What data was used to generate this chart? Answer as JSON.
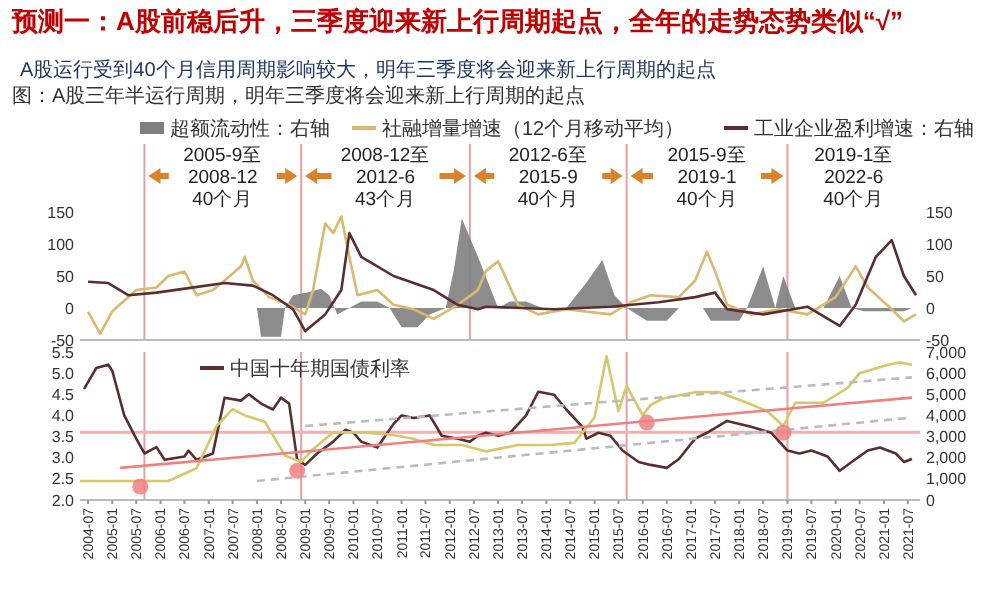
{
  "chart_data": [
    {
      "type": "line",
      "title": "预测一：A股前稳后升，三季度迎来新上行周期起点，全年的走势态势类似“√”",
      "subtitle": "A股运行受到40个月信用周期影响较大，明年三季度将会迎来新上行周期的起点",
      "xlim": [
        "2004-05",
        "2021-10"
      ],
      "ylim": [
        -50,
        150
      ],
      "yticks": [
        -50,
        0,
        50,
        100,
        150
      ],
      "y2lim": [
        -50,
        150
      ],
      "y2ticks": [
        -50,
        0,
        50,
        100,
        150
      ],
      "tick_labels": "y",
      "legend": "top",
      "series": [
        {
          "name": "超额流动性：右轴",
          "type": "area",
          "axis": "y2",
          "color": "#7f7f7f",
          "x": [
            "2008-01",
            "2008-02",
            "2008-07",
            "2008-08",
            "2008-10",
            "2009-02",
            "2009-05",
            "2009-07",
            "2009-09",
            "2009-12",
            "2010-03",
            "2010-07",
            "2010-10",
            "2011-01",
            "2011-05",
            "2011-08",
            "2011-12",
            "2012-02",
            "2012-04",
            "2012-08",
            "2013-01",
            "2013-04",
            "2013-08",
            "2013-12",
            "2014-06",
            "2014-11",
            "2015-03",
            "2015-06",
            "2015-09",
            "2016-02",
            "2016-07",
            "2016-10",
            "2017-04",
            "2017-06",
            "2018-01",
            "2018-03",
            "2018-07",
            "2018-10",
            "2018-12",
            "2019-03",
            "2019-10",
            "2020-02",
            "2020-05",
            "2020-08",
            "2021-06",
            "2021-08"
          ],
          "values": [
            0,
            -45,
            -45,
            0,
            20,
            25,
            30,
            20,
            -10,
            0,
            10,
            10,
            0,
            -30,
            -30,
            -10,
            0,
            60,
            140,
            80,
            0,
            10,
            10,
            0,
            0,
            40,
            75,
            20,
            0,
            -20,
            -20,
            0,
            0,
            -20,
            -20,
            0,
            65,
            0,
            50,
            0,
            0,
            50,
            0,
            -5,
            -5,
            0
          ]
        },
        {
          "name": "社融增量增速（12个月移动平均）",
          "color": "#d9b870",
          "x": [
            "2004-07",
            "2004-10",
            "2005-01",
            "2005-07",
            "2005-12",
            "2006-03",
            "2006-07",
            "2006-10",
            "2007-02",
            "2007-05",
            "2007-09",
            "2007-10",
            "2007-12",
            "2008-04",
            "2008-09",
            "2009-01",
            "2009-03",
            "2009-06",
            "2009-08",
            "2009-10",
            "2009-12",
            "2010-02",
            "2010-07",
            "2010-11",
            "2011-04",
            "2011-09",
            "2012-03",
            "2012-08",
            "2012-10",
            "2013-01",
            "2013-06",
            "2013-11",
            "2014-06",
            "2015-05",
            "2015-10",
            "2016-03",
            "2016-10",
            "2017-02",
            "2017-05",
            "2017-07",
            "2017-10",
            "2018-04",
            "2018-11",
            "2019-06",
            "2020-01",
            "2020-06",
            "2020-09",
            "2021-03",
            "2021-06",
            "2021-09"
          ],
          "values": [
            -6,
            -40,
            -5,
            28,
            32,
            50,
            57,
            20,
            28,
            43,
            65,
            80,
            43,
            17,
            5,
            -10,
            28,
            132,
            117,
            143,
            80,
            20,
            28,
            5,
            -2,
            -17,
            5,
            28,
            58,
            73,
            5,
            -10,
            -2,
            -10,
            9,
            20,
            17,
            43,
            88,
            58,
            5,
            -10,
            -2,
            -10,
            17,
            65,
            32,
            -2,
            -21,
            -10
          ]
        },
        {
          "name": "工业企业盈利增速：右轴",
          "axis": "y2",
          "color": "#5a2e2e",
          "x": [
            "2004-07",
            "2004-12",
            "2005-05",
            "2005-12",
            "2006-08",
            "2007-05",
            "2007-12",
            "2008-05",
            "2008-10",
            "2009-01",
            "2009-06",
            "2009-10",
            "2009-12",
            "2010-03",
            "2010-11",
            "2011-09",
            "2012-03",
            "2012-08",
            "2012-10",
            "2014-03",
            "2015-05",
            "2016-05",
            "2017-02",
            "2017-07",
            "2017-10",
            "2018-07",
            "2019-06",
            "2020-02",
            "2020-06",
            "2020-11",
            "2021-03",
            "2021-06",
            "2021-09"
          ],
          "values": [
            41,
            39,
            20,
            24,
            31,
            39,
            35,
            20,
            -2,
            -36,
            -10,
            28,
            117,
            80,
            50,
            28,
            5,
            -2,
            2,
            -2,
            2,
            9,
            17,
            24,
            -2,
            -10,
            2,
            -28,
            5,
            80,
            106,
            50,
            20
          ]
        }
      ],
      "ref_lines": [
        {
          "axis": "x",
          "value": "2005-09",
          "color": "#e8a0a0"
        },
        {
          "axis": "x",
          "value": "2008-12",
          "color": "#e8a0a0"
        },
        {
          "axis": "x",
          "value": "2012-06",
          "color": "#e8a0a0"
        },
        {
          "axis": "x",
          "value": "2015-09",
          "color": "#e8a0a0"
        },
        {
          "axis": "x",
          "value": "2019-01",
          "color": "#e8a0a0"
        }
      ],
      "annotations": [
        "图：A股三年半运行周期，明年三季度将会迎来新上行周期的起点",
        "2005-9至\n2008-12\n40个月",
        "2008-12至\n2012-6\n43个月",
        "2012-6至\n2015-9\n40个月",
        "2015-9至\n2019-1\n40个月",
        "2019-1至\n2022-6\n40个月"
      ]
    },
    {
      "type": "line",
      "xlim": [
        "2004-05",
        "2021-10"
      ],
      "xticks": [
        "2004-07",
        "2005-01",
        "2005-07",
        "2006-01",
        "2006-07",
        "2007-01",
        "2007-07",
        "2008-01",
        "2008-07",
        "2009-01",
        "2009-07",
        "2010-01",
        "2010-07",
        "2011-01",
        "2011-07",
        "2012-01",
        "2012-07",
        "2013-01",
        "2013-07",
        "2014-01",
        "2014-07",
        "2015-01",
        "2015-07",
        "2016-01",
        "2016-07",
        "2017-01",
        "2017-07",
        "2018-01",
        "2018-07",
        "2019-01",
        "2019-07",
        "2020-01",
        "2020-07",
        "2021-01",
        "2021-07"
      ],
      "ylim": [
        2,
        5.5
      ],
      "yticks": [
        {
          "value": 2,
          "label": "2.0"
        },
        2.5,
        {
          "value": 3,
          "label": "3.0"
        },
        3.5,
        {
          "value": 4,
          "label": "4.0"
        },
        4.5,
        {
          "value": 5,
          "label": "5.0"
        },
        5.5
      ],
      "y2lim": [
        0,
        7000
      ],
      "y2ticks": [
        0,
        {
          "value": 1000,
          "label": "1,000"
        },
        {
          "value": 2000,
          "label": "2,000"
        },
        {
          "value": 3000,
          "label": "3,000"
        },
        {
          "value": 4000,
          "label": "4,000"
        },
        {
          "value": 5000,
          "label": "5,000"
        },
        {
          "value": 6000,
          "label": "6,000"
        },
        {
          "value": 7000,
          "label": "7,000"
        }
      ],
      "legend": "top left",
      "series": [
        {
          "name": "中国十年期国债利率",
          "color": "#5a2e2e",
          "x": [
            "2004-06",
            "2004-09",
            "2004-12",
            "2005-01",
            "2005-04",
            "2005-07",
            "2005-09",
            "2005-12",
            "2006-02",
            "2006-07",
            "2006-08",
            "2006-10",
            "2007-02",
            "2007-05",
            "2007-09",
            "2007-11",
            "2008-02",
            "2008-05",
            "2008-07",
            "2008-09",
            "2008-11",
            "2009-01",
            "2009-04",
            "2009-08",
            "2009-11",
            "2010-01",
            "2010-03",
            "2010-07",
            "2010-11",
            "2011-01",
            "2011-04",
            "2011-08",
            "2011-11",
            "2012-03",
            "2012-06",
            "2012-08",
            "2012-10",
            "2013-01",
            "2013-04",
            "2013-08",
            "2013-11",
            "2014-03",
            "2014-06",
            "2014-10",
            "2014-11",
            "2015-02",
            "2015-05",
            "2015-08",
            "2015-12",
            "2016-03",
            "2016-07",
            "2016-10",
            "2017-02",
            "2017-05",
            "2017-10",
            "2018-04",
            "2018-09",
            "2019-01",
            "2019-04",
            "2019-07",
            "2019-11",
            "2020-02",
            "2020-05",
            "2020-09",
            "2020-12",
            "2021-04",
            "2021-06",
            "2021-08"
          ],
          "values": [
            4.63,
            5.12,
            5.2,
            5.05,
            4.0,
            3.45,
            3.1,
            3.25,
            2.95,
            3.03,
            3.17,
            2.95,
            3.1,
            4.42,
            4.35,
            4.5,
            4.28,
            4.14,
            4.42,
            4.28,
            2.95,
            2.83,
            3.1,
            3.38,
            3.66,
            3.59,
            3.38,
            3.24,
            3.8,
            4.0,
            3.94,
            4.0,
            3.52,
            3.45,
            3.38,
            3.52,
            3.59,
            3.52,
            3.59,
            4.0,
            4.56,
            4.49,
            4.14,
            3.73,
            3.45,
            3.59,
            3.52,
            3.17,
            2.9,
            2.83,
            2.76,
            2.97,
            3.45,
            3.59,
            3.87,
            3.73,
            3.59,
            3.17,
            3.1,
            3.17,
            3.03,
            2.69,
            2.9,
            3.17,
            3.24,
            3.1,
            2.9,
            2.97
          ]
        },
        {
          "axis": "y2",
          "color": "#d6c76a",
          "x": [
            "2004-05",
            "2006-03",
            "2006-10",
            "2007-03",
            "2007-07",
            "2007-10",
            "2008-03",
            "2008-08",
            "2008-12",
            "2009-03",
            "2009-08",
            "2010-03",
            "2010-10",
            "2011-04",
            "2011-09",
            "2012-04",
            "2012-08",
            "2012-10",
            "2013-06",
            "2014-02",
            "2014-08",
            "2015-01",
            "2015-04",
            "2015-07",
            "2015-09",
            "2016-01",
            "2016-03",
            "2016-06",
            "2017-02",
            "2017-08",
            "2018-03",
            "2018-08",
            "2018-12",
            "2019-03",
            "2019-10",
            "2020-04",
            "2020-07",
            "2021-02",
            "2021-05",
            "2021-08"
          ],
          "values": [
            900,
            900,
            1500,
            3500,
            4300,
            4000,
            3700,
            2100,
            1800,
            2400,
            3200,
            3200,
            3100,
            2900,
            2600,
            2600,
            2400,
            2300,
            2600,
            2600,
            2700,
            3900,
            6800,
            4200,
            5400,
            4000,
            4500,
            4800,
            5100,
            5100,
            4600,
            4200,
            3500,
            4600,
            4600,
            5300,
            6000,
            6400,
            6500,
            6400
          ]
        },
        {
          "color": "#f08080",
          "x": [
            "2005-03",
            "2021-08"
          ],
          "values": [
            2.76,
            4.42
          ]
        },
        {
          "color": "#bbbbbb",
          "line_style": "dashed",
          "x": [
            "2009-01",
            "2021-08"
          ],
          "values": [
            3.75,
            4.9
          ]
        },
        {
          "color": "#bbbbbb",
          "line_style": "dashed",
          "x": [
            "2008-01",
            "2021-08"
          ],
          "values": [
            2.45,
            3.95
          ]
        },
        {
          "type": "scatter",
          "marker": "circle",
          "color": "#f08080",
          "x": [
            "2005-08",
            "2008-11",
            "2016-02",
            "2018-12"
          ],
          "values": [
            2.32,
            2.69,
            3.83,
            3.59
          ]
        }
      ],
      "ref_lines": [
        {
          "axis": "x",
          "value": "2005-09",
          "color": "#e8a0a0"
        },
        {
          "axis": "x",
          "value": "2008-12",
          "color": "#e8a0a0"
        },
        {
          "axis": "x",
          "value": "2015-09",
          "color": "#e8a0a0"
        },
        {
          "axis": "x",
          "value": "2019-01",
          "color": "#e8a0a0"
        },
        {
          "axis": "y",
          "value": 3.6,
          "color": "#f4b0b0"
        }
      ]
    }
  ]
}
